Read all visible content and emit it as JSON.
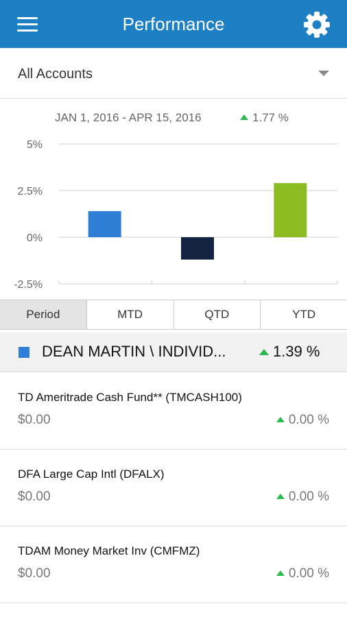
{
  "appbar": {
    "title": "Performance"
  },
  "account_selector": {
    "selected": "All Accounts"
  },
  "chart_header": {
    "date_range": "JAN 1, 2016 - APR 15, 2016",
    "change": "1.77 %"
  },
  "chart_data": {
    "type": "bar",
    "categories": [
      "",
      "",
      ""
    ],
    "values": [
      1.4,
      -1.2,
      2.9
    ],
    "colors": [
      "#2f7fd6",
      "#13233f",
      "#8bbd22"
    ],
    "ytick_labels": [
      "5%",
      "2.5%",
      "0%",
      "-2.5%"
    ],
    "yticks": [
      5,
      2.5,
      0,
      -2.5
    ],
    "ylim": [
      -2.5,
      5
    ],
    "grid": true
  },
  "tabs": [
    {
      "label": "Period",
      "active": true
    },
    {
      "label": "MTD",
      "active": false
    },
    {
      "label": "QTD",
      "active": false
    },
    {
      "label": "YTD",
      "active": false
    }
  ],
  "account": {
    "name": "DEAN MARTIN \\ INDIVID...",
    "change": "1.39 %",
    "color": "#2f7fd6"
  },
  "holdings": [
    {
      "name": "TD Ameritrade Cash Fund** (TMCASH100)",
      "value": "$0.00",
      "change": "0.00 %"
    },
    {
      "name": "DFA Large Cap Intl (DFALX)",
      "value": "$0.00",
      "change": "0.00 %"
    },
    {
      "name": "TDAM Money Market Inv (CMFMZ)",
      "value": "$0.00",
      "change": "0.00 %"
    }
  ],
  "colors": {
    "primary": "#1d7fc4",
    "up": "#2db84d"
  }
}
